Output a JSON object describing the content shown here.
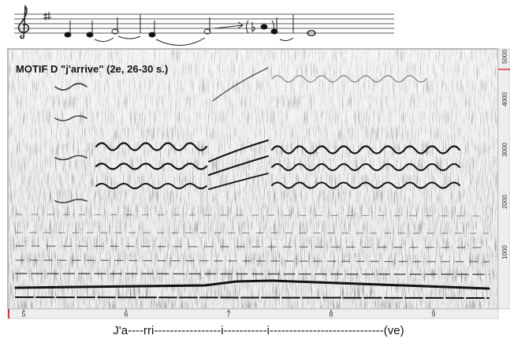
{
  "spectrogram": {
    "title": "MOTIF D \"j'arrive\" (2e, 26-30 s.)",
    "x_tick_labels": [
      "5",
      "6",
      "7",
      "8",
      "9"
    ],
    "y_tick_labels": [
      "5000",
      "4000",
      "3000",
      "2000",
      "1000"
    ]
  },
  "lyrics": "J'a----rri-----------------i-----------i-----------------------------(ve)"
}
